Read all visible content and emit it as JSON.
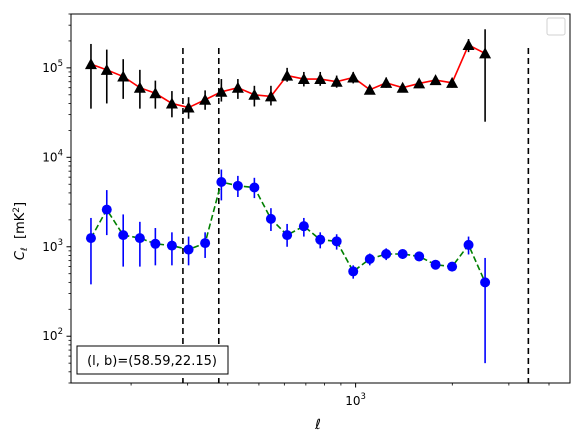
{
  "chart_data": {
    "type": "scatter",
    "xlabel": "ℓ",
    "ylabel_main": "C",
    "ylabel_sub": "ℓ",
    "ylabel_unit": "[mK",
    "ylabel_unit_sup": "2",
    "ylabel_unit_close": "]",
    "x_scale": "log",
    "y_scale": "log",
    "xlim": [
      130,
      4650
    ],
    "ylim": [
      30,
      400000
    ],
    "x_major_ticks": [
      {
        "value": 1000,
        "base": "10",
        "exp": "3"
      }
    ],
    "y_major_ticks": [
      {
        "value": 100,
        "base": "10",
        "exp": "2"
      },
      {
        "value": 1000,
        "base": "10",
        "exp": "3"
      },
      {
        "value": 10000,
        "base": "10",
        "exp": "4"
      },
      {
        "value": 100000,
        "base": "10",
        "exp": "5"
      }
    ],
    "grid": false,
    "legend_placement": "top-right",
    "vlines": [
      290,
      375,
      3450
    ],
    "annotation": "(l, b)=(58.59,22.15)",
    "series": [
      {
        "color": "#000000",
        "line_color": "#ff0000",
        "line_style": "solid",
        "marker": "triangle",
        "points": [
          {
            "x": 150,
            "y": 110000,
            "lo": 35000,
            "hi": 185000
          },
          {
            "x": 168,
            "y": 95000,
            "lo": 40000,
            "hi": 160000
          },
          {
            "x": 189,
            "y": 80000,
            "lo": 45000,
            "hi": 125000
          },
          {
            "x": 213,
            "y": 60000,
            "lo": 35000,
            "hi": 95000
          },
          {
            "x": 238,
            "y": 52000,
            "lo": 35000,
            "hi": 72000
          },
          {
            "x": 268,
            "y": 40000,
            "lo": 28000,
            "hi": 55000
          },
          {
            "x": 302,
            "y": 36000,
            "lo": 27000,
            "hi": 47000
          },
          {
            "x": 340,
            "y": 44000,
            "lo": 34000,
            "hi": 56000
          },
          {
            "x": 382,
            "y": 54000,
            "lo": 42000,
            "hi": 75000
          },
          {
            "x": 430,
            "y": 60000,
            "lo": 45000,
            "hi": 75000
          },
          {
            "x": 484,
            "y": 50000,
            "lo": 37000,
            "hi": 63000
          },
          {
            "x": 545,
            "y": 48000,
            "lo": 38000,
            "hi": 63000
          },
          {
            "x": 612,
            "y": 82000,
            "lo": 70000,
            "hi": 100000
          },
          {
            "x": 690,
            "y": 75000,
            "lo": 62000,
            "hi": 90000
          },
          {
            "x": 776,
            "y": 75000,
            "lo": 63000,
            "hi": 90000
          },
          {
            "x": 873,
            "y": 70000,
            "lo": 60000,
            "hi": 82000
          },
          {
            "x": 983,
            "y": 78000,
            "lo": 67000,
            "hi": 90000
          },
          {
            "x": 1107,
            "y": 57000,
            "lo": 52000,
            "hi": 63000
          },
          {
            "x": 1245,
            "y": 68000,
            "lo": 60000,
            "hi": 78000
          },
          {
            "x": 1401,
            "y": 60000,
            "lo": 54000,
            "hi": 66000
          },
          {
            "x": 1577,
            "y": 67000,
            "lo": 60000,
            "hi": 74000
          },
          {
            "x": 1774,
            "y": 73000,
            "lo": 66000,
            "hi": 80000
          },
          {
            "x": 1997,
            "y": 68000,
            "lo": 60000,
            "hi": 75000
          },
          {
            "x": 2247,
            "y": 180000,
            "lo": 150000,
            "hi": 210000
          },
          {
            "x": 2530,
            "y": 145000,
            "lo": 25000,
            "hi": 270000
          }
        ]
      },
      {
        "color": "#0000ff",
        "line_color": "#008000",
        "line_style": "dashed",
        "marker": "circle",
        "points": [
          {
            "x": 150,
            "y": 1250,
            "lo": 380,
            "hi": 2100
          },
          {
            "x": 168,
            "y": 2600,
            "lo": 1350,
            "hi": 4300
          },
          {
            "x": 189,
            "y": 1350,
            "lo": 600,
            "hi": 2300
          },
          {
            "x": 213,
            "y": 1250,
            "lo": 600,
            "hi": 1900
          },
          {
            "x": 238,
            "y": 1080,
            "lo": 620,
            "hi": 1620
          },
          {
            "x": 268,
            "y": 1030,
            "lo": 620,
            "hi": 1450
          },
          {
            "x": 302,
            "y": 930,
            "lo": 620,
            "hi": 1300
          },
          {
            "x": 340,
            "y": 1100,
            "lo": 750,
            "hi": 1450
          },
          {
            "x": 382,
            "y": 5300,
            "lo": 3300,
            "hi": 7300
          },
          {
            "x": 430,
            "y": 4800,
            "lo": 3600,
            "hi": 6200
          },
          {
            "x": 484,
            "y": 4600,
            "lo": 3500,
            "hi": 5900
          },
          {
            "x": 545,
            "y": 2050,
            "lo": 1500,
            "hi": 2700
          },
          {
            "x": 612,
            "y": 1350,
            "lo": 1000,
            "hi": 1800
          },
          {
            "x": 690,
            "y": 1700,
            "lo": 1300,
            "hi": 2100
          },
          {
            "x": 776,
            "y": 1200,
            "lo": 960,
            "hi": 1450
          },
          {
            "x": 873,
            "y": 1150,
            "lo": 930,
            "hi": 1380
          },
          {
            "x": 983,
            "y": 530,
            "lo": 440,
            "hi": 620
          },
          {
            "x": 1107,
            "y": 730,
            "lo": 620,
            "hi": 840
          },
          {
            "x": 1245,
            "y": 830,
            "lo": 710,
            "hi": 960
          },
          {
            "x": 1401,
            "y": 830,
            "lo": 730,
            "hi": 930
          },
          {
            "x": 1577,
            "y": 780,
            "lo": 690,
            "hi": 870
          },
          {
            "x": 1774,
            "y": 630,
            "lo": 560,
            "hi": 700
          },
          {
            "x": 1997,
            "y": 600,
            "lo": 530,
            "hi": 670
          },
          {
            "x": 2247,
            "y": 1050,
            "lo": 820,
            "hi": 1300
          },
          {
            "x": 2530,
            "y": 400,
            "lo": 50,
            "hi": 750
          }
        ]
      }
    ]
  }
}
